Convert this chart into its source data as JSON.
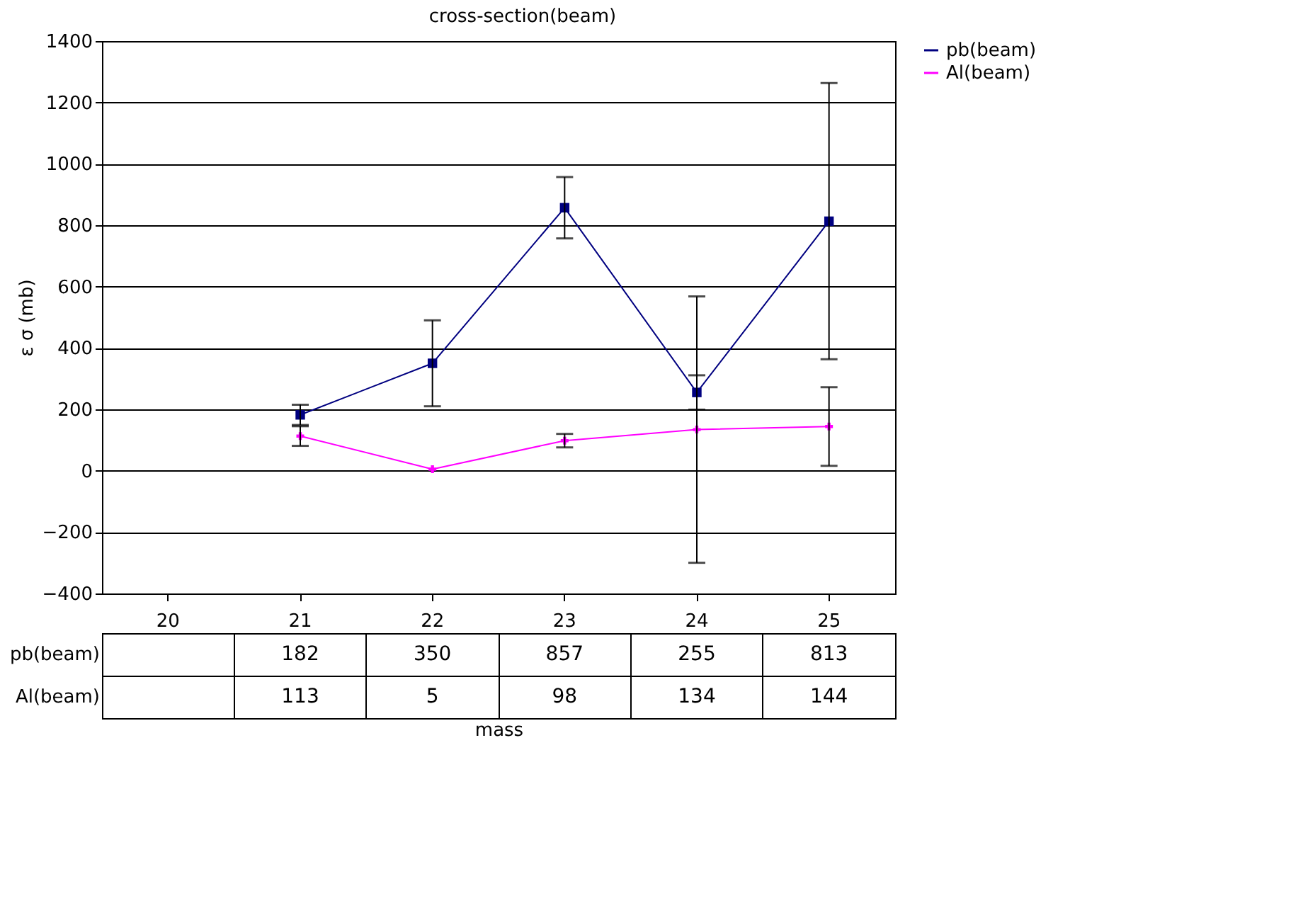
{
  "chart_data": {
    "type": "line",
    "title": "cross-section(beam)",
    "xlabel": "mass",
    "ylabel": "ε σ (mb)",
    "categories": [
      "20",
      "21",
      "22",
      "23",
      "24",
      "25"
    ],
    "series": [
      {
        "name": "pb(beam)",
        "color": "#000080",
        "marker": "square",
        "values": [
          null,
          182,
          350,
          857,
          255,
          813
        ],
        "errors": [
          null,
          33,
          140,
          100,
          56,
          450
        ]
      },
      {
        "name": "Al(beam)",
        "color": "#ff00ff",
        "marker": "cross",
        "values": [
          null,
          113,
          5,
          98,
          134,
          144
        ],
        "errors": [
          null,
          32,
          null,
          22,
          434,
          128
        ]
      }
    ],
    "ylim": [
      -400,
      1400
    ],
    "yticks": [
      -400,
      -200,
      0,
      200,
      400,
      600,
      800,
      1000,
      1200,
      1400
    ],
    "grid": "y",
    "legend": "right",
    "data_labels": true,
    "line_style": "solid"
  }
}
